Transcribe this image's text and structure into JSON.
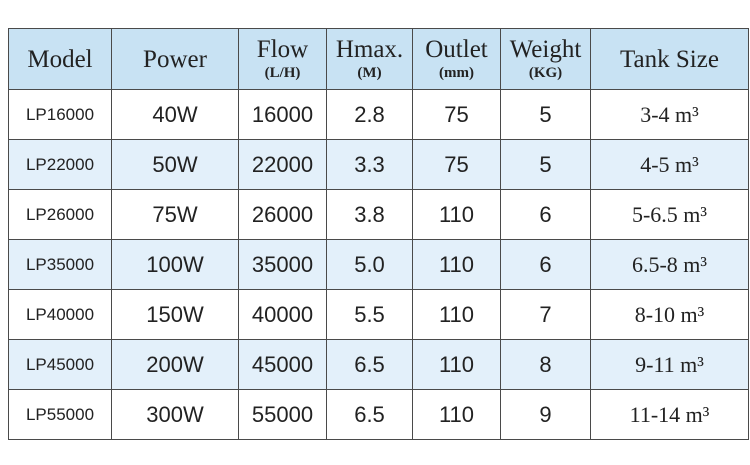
{
  "table": {
    "header": [
      {
        "title": "Model"
      },
      {
        "title": "Power"
      },
      {
        "title": "Flow",
        "unit": "(L/H)"
      },
      {
        "title": "Hmax.",
        "unit": "(M)"
      },
      {
        "title": "Outlet",
        "unit": "(mm)"
      },
      {
        "title": "Weight",
        "unit": "(KG)"
      },
      {
        "title": "Tank Size"
      }
    ],
    "rows": [
      [
        "LP16000",
        "40W",
        "16000",
        "2.8",
        "75",
        "5",
        "3-4 m³"
      ],
      [
        "LP22000",
        "50W",
        "22000",
        "3.3",
        "75",
        "5",
        "4-5 m³"
      ],
      [
        "LP26000",
        "75W",
        "26000",
        "3.8",
        "110",
        "6",
        "5-6.5 m³"
      ],
      [
        "LP35000",
        "100W",
        "35000",
        "5.0",
        "110",
        "6",
        "6.5-8 m³"
      ],
      [
        "LP40000",
        "150W",
        "40000",
        "5.5",
        "110",
        "7",
        "8-10 m³"
      ],
      [
        "LP45000",
        "200W",
        "45000",
        "6.5",
        "110",
        "8",
        "9-11 m³"
      ],
      [
        "LP55000",
        "300W",
        "55000",
        "6.5",
        "110",
        "9",
        "11-14 m³"
      ]
    ]
  }
}
